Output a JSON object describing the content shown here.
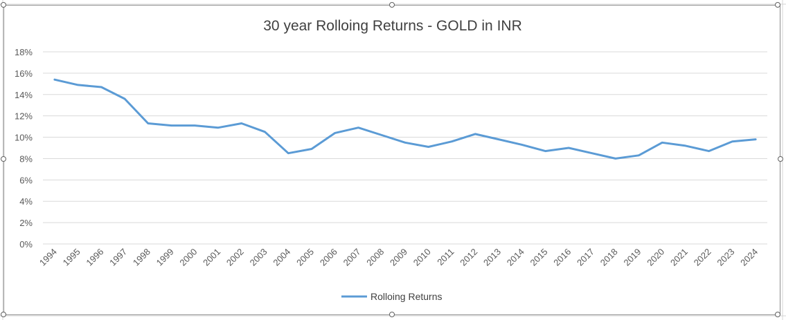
{
  "chart_data": {
    "type": "line",
    "title": "30 year Rolloing Returns - GOLD in INR",
    "x": [
      "1994",
      "1995",
      "1996",
      "1997",
      "1998",
      "1999",
      "2000",
      "2001",
      "2002",
      "2003",
      "2004",
      "2005",
      "2006",
      "2007",
      "2008",
      "2009",
      "2010",
      "2011",
      "2012",
      "2013",
      "2014",
      "2015",
      "2016",
      "2017",
      "2018",
      "2019",
      "2020",
      "2021",
      "2022",
      "2023",
      "2024"
    ],
    "y_ticks": [
      "0%",
      "2%",
      "4%",
      "6%",
      "8%",
      "10%",
      "12%",
      "14%",
      "16%",
      "18%"
    ],
    "ylim": [
      0,
      18
    ],
    "grid": true,
    "legend_position": "bottom",
    "series": [
      {
        "name": "Rolloing Returns",
        "color": "#5b9bd5",
        "values": [
          15.4,
          14.9,
          14.7,
          13.6,
          11.3,
          11.1,
          11.1,
          10.9,
          11.3,
          10.5,
          8.5,
          8.9,
          10.4,
          10.9,
          10.2,
          9.5,
          9.1,
          9.6,
          10.3,
          9.8,
          9.3,
          8.7,
          9.0,
          8.5,
          8.0,
          8.3,
          9.5,
          9.2,
          8.7,
          9.6,
          9.8
        ]
      }
    ]
  }
}
